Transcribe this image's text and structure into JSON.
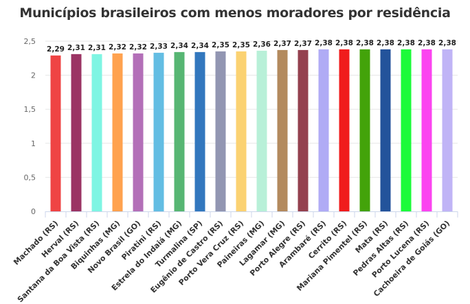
{
  "chart_data": {
    "type": "bar",
    "title": "Municípios brasileiros com menos moradores por residência",
    "xlabel": "",
    "ylabel": "",
    "ylim": [
      0,
      2.5
    ],
    "yticks": [
      "0",
      "0,5",
      "1",
      "1,5",
      "2",
      "2,5"
    ],
    "grid": true,
    "categories": [
      "Machado (RS)",
      "Herval (RS)",
      "Santana da Boa Vista (RS)",
      "Biquinhas (MG)",
      "Novo Brasil (GO)",
      "Piratini (RS)",
      "Estrela do Indaiá (MG)",
      "Turmalina (SP)",
      "Eugênio de Castro (RS)",
      "Porto Vera Cruz (RS)",
      "Paineiras (MG)",
      "Lagamar (MG)",
      "Porto Alegre (RS)",
      "Arambaré (RS)",
      "Cerrito (RS)",
      "Mariana Pimentel (RS)",
      "Mata (RS)",
      "Pedras Altas (RS)",
      "Porto Lucena (RS)",
      "Cachoeira de Goiás (GO)"
    ],
    "values": [
      2.29,
      2.31,
      2.31,
      2.32,
      2.32,
      2.33,
      2.34,
      2.34,
      2.35,
      2.35,
      2.36,
      2.37,
      2.37,
      2.38,
      2.38,
      2.38,
      2.38,
      2.38,
      2.38,
      2.38
    ],
    "labels": [
      "2,29",
      "2,31",
      "2,31",
      "2,32",
      "2,32",
      "2,33",
      "2,34",
      "2,34",
      "2,35",
      "2,35",
      "2,36",
      "2,37",
      "2,37",
      "2,38",
      "2,38",
      "2,38",
      "2,38",
      "2,38",
      "2,38",
      "2,38"
    ],
    "colors": [
      "#ef4444",
      "#9b3464",
      "#7ff5e3",
      "#ffa24f",
      "#b36fb8",
      "#63bde3",
      "#57b673",
      "#3277be",
      "#9296b2",
      "#fbd272",
      "#b8f0d8",
      "#b38a5e",
      "#94414f",
      "#b0abf5",
      "#f01c1c",
      "#43a30a",
      "#23539b",
      "#1cfb3a",
      "#fb44f0",
      "#c0b4f6"
    ]
  }
}
